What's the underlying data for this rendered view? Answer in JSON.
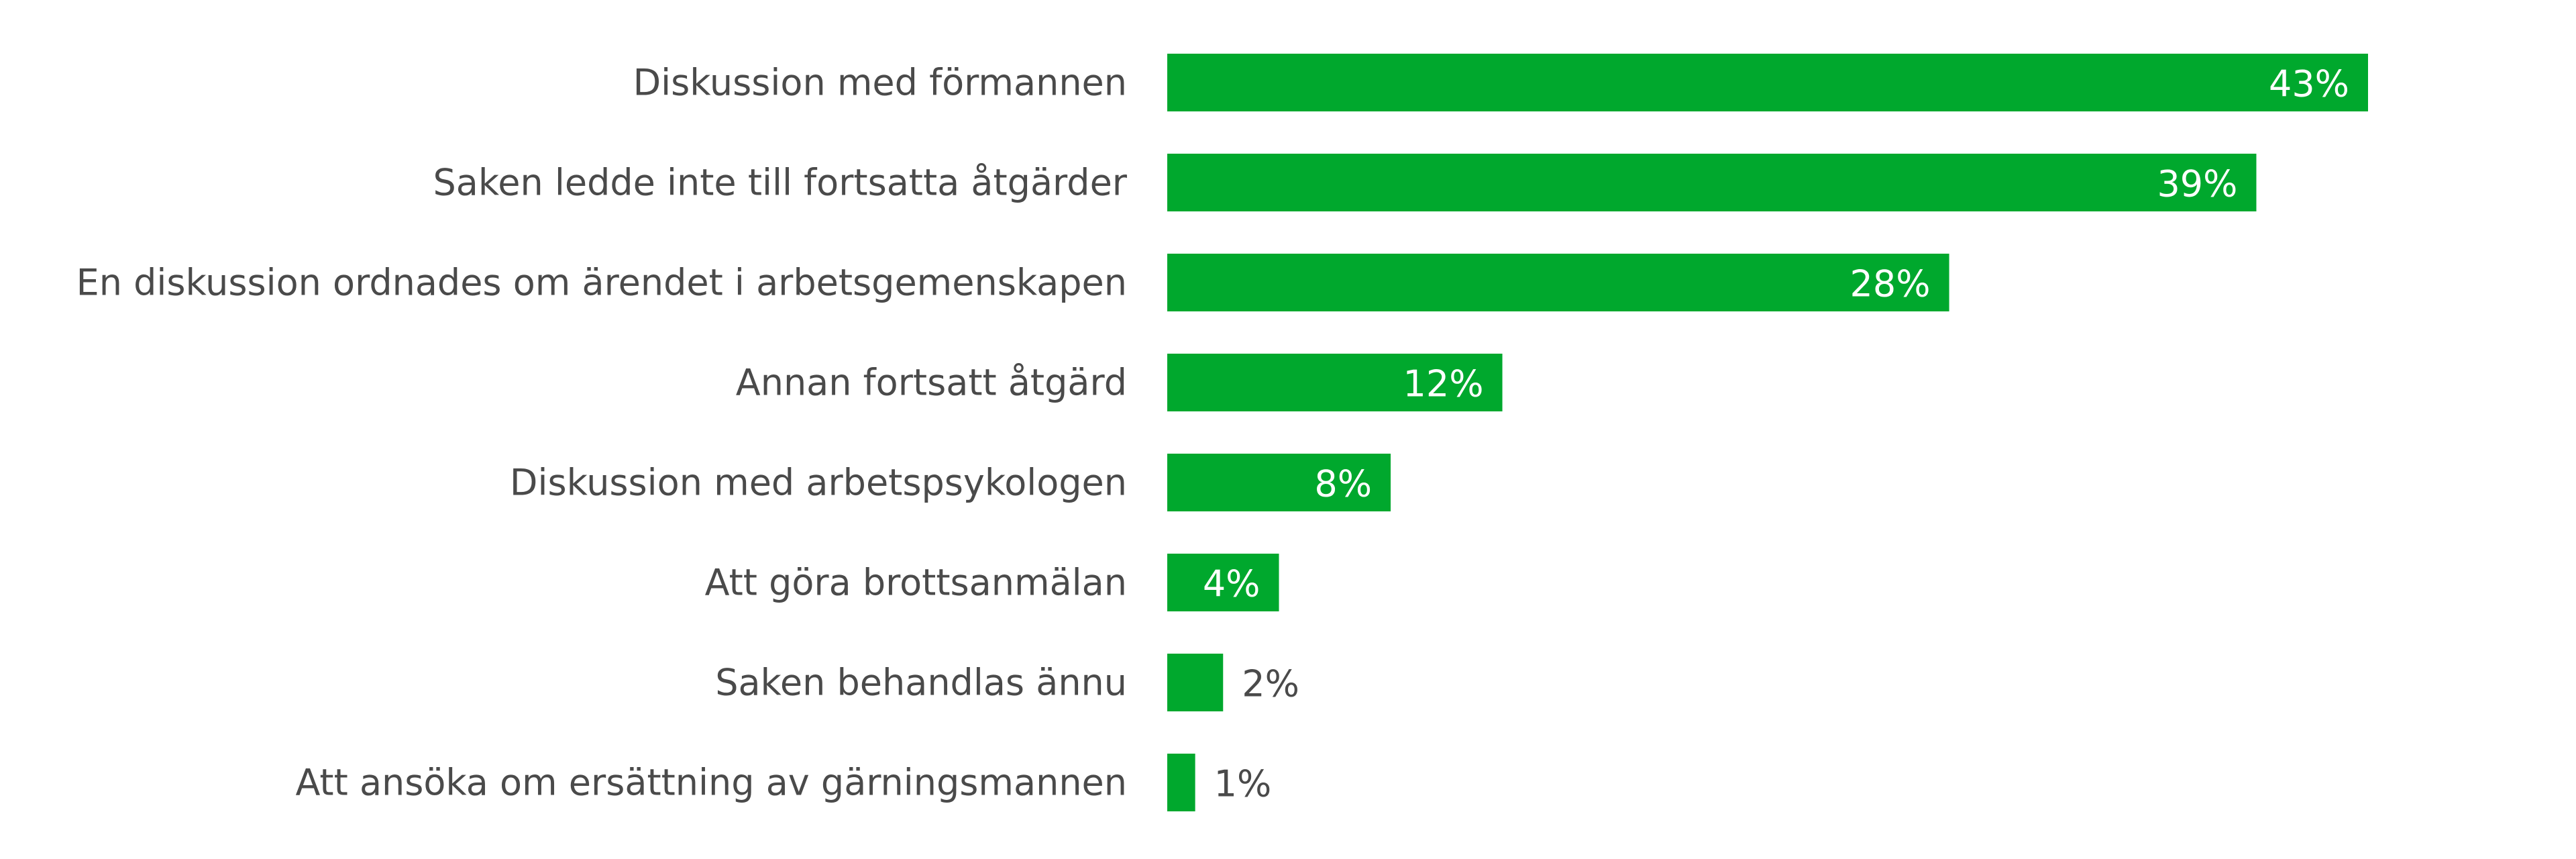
{
  "chart_data": {
    "type": "bar",
    "orientation": "horizontal",
    "categories": [
      "Diskussion med förmannen",
      "Saken ledde inte till fortsatta åtgärder",
      "En diskussion ordnades om ärendet i arbetsgemenskapen",
      "Annan fortsatt åtgärd",
      "Diskussion med arbetspsykologen",
      "Att göra brottsanmälan",
      "Saken behandlas ännu",
      "Att ansöka om ersättning av gärningsmannen"
    ],
    "values": [
      43,
      39,
      28,
      12,
      8,
      4,
      2,
      1
    ],
    "value_labels": [
      "43%",
      "39%",
      "28%",
      "12%",
      "8%",
      "4%",
      "2%",
      "1%"
    ],
    "unit": "%",
    "xlim": [
      0,
      43
    ],
    "grid": false,
    "legend": "none",
    "colors": {
      "bar": "#00a82d",
      "label_inside": "#ffffff",
      "label_outside": "#4a4a4a",
      "category_text": "#4a4a4a"
    }
  }
}
